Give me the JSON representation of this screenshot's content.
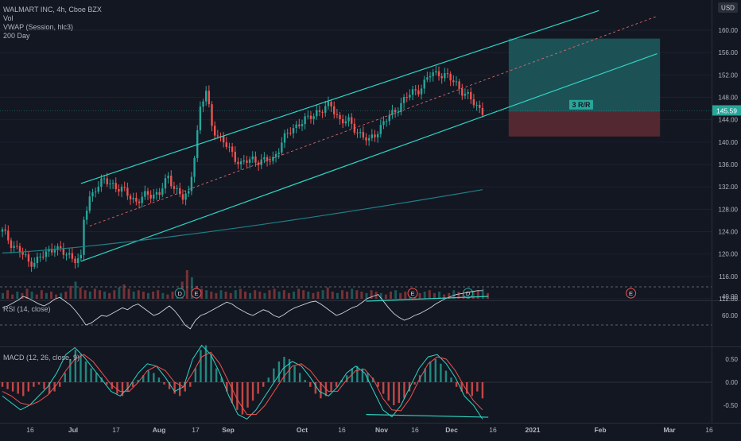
{
  "legend": {
    "main": "WALMART INC, 4h, Cboe BZX",
    "vol": "Vol",
    "vwap": "VWAP (Session, hlc3)",
    "ma": "200 Day"
  },
  "currency_badge": "USD",
  "last_price": "145.59",
  "rr_label": "3 R/R",
  "rsi_label": "RSI (14, close)",
  "macd_label": "MACD (12, 26, close, 9)",
  "event_markers": [
    "D",
    "E",
    "E",
    "D",
    "E"
  ],
  "colors": {
    "background": "#131722",
    "up": "#26a69a",
    "down": "#ef5350",
    "channel": "#2ed5c3",
    "ma": "#1e7f86",
    "profit_zone": "#1f5c5f",
    "loss_zone": "#5b2a33",
    "rsi_line": "#d1d4dc",
    "macd_line": "#2ed5c3",
    "signal_line": "#ef5350"
  },
  "chart_data": [
    {
      "type": "candlestick",
      "title": "WALMART INC, 4h, Cboe BZX",
      "y_axis_ticks": [
        112,
        116,
        120,
        124,
        128,
        132,
        136,
        140,
        144,
        148,
        152,
        156,
        160
      ],
      "y_axis_labels": [
        "112.00",
        "116.00",
        "120.00",
        "124.00",
        "128.00",
        "132.00",
        "136.00",
        "140.00",
        "144.00",
        "148.00",
        "152.00",
        "156.00",
        "160.00"
      ],
      "ylim": [
        111.5,
        164
      ],
      "x_axis_labels": [
        "16",
        "Jul",
        "17",
        "Aug",
        "17",
        "Sep",
        "Oct",
        "16",
        "Nov",
        "16",
        "Dec",
        "16",
        "2021",
        "Feb",
        "Mar",
        "16"
      ],
      "close_path": [
        [
          0,
          124.0
        ],
        [
          3,
          122.0
        ],
        [
          6,
          120.5
        ],
        [
          9,
          118.5
        ],
        [
          12,
          119.0
        ],
        [
          15,
          120.0
        ],
        [
          18,
          121.5
        ],
        [
          21,
          120.0
        ],
        [
          24,
          119.5
        ],
        [
          27,
          119.0
        ],
        [
          28,
          126.0
        ],
        [
          30,
          130.0
        ],
        [
          32,
          132.0
        ],
        [
          35,
          133.0
        ],
        [
          38,
          132.5
        ],
        [
          42,
          131.0
        ],
        [
          46,
          129.5
        ],
        [
          50,
          130.5
        ],
        [
          54,
          131.0
        ],
        [
          57,
          133.5
        ],
        [
          60,
          131.5
        ],
        [
          62,
          130.0
        ],
        [
          64,
          130.5
        ],
        [
          66,
          138.0
        ],
        [
          68,
          146.0
        ],
        [
          70,
          149.0
        ],
        [
          72,
          143.0
        ],
        [
          75,
          140.5
        ],
        [
          79,
          138.0
        ],
        [
          82,
          136.0
        ],
        [
          86,
          137.0
        ],
        [
          90,
          136.5
        ],
        [
          93,
          137.0
        ],
        [
          96,
          140.0
        ],
        [
          99,
          142.0
        ],
        [
          102,
          143.5
        ],
        [
          105,
          144.0
        ],
        [
          108,
          145.5
        ],
        [
          111,
          146.0
        ],
        [
          113,
          146.5
        ],
        [
          116,
          144.0
        ],
        [
          119,
          143.5
        ],
        [
          122,
          142.0
        ],
        [
          124,
          141.0
        ],
        [
          126,
          140.0
        ],
        [
          128,
          141.5
        ],
        [
          131,
          143.5
        ],
        [
          134,
          145.0
        ],
        [
          137,
          147.0
        ],
        [
          140,
          148.5
        ],
        [
          143,
          149.5
        ],
        [
          145,
          150.5
        ],
        [
          147,
          152.0
        ],
        [
          150,
          152.5
        ],
        [
          153,
          151.5
        ],
        [
          156,
          150.5
        ],
        [
          159,
          148.5
        ],
        [
          162,
          147.0
        ],
        [
          165,
          145.59
        ]
      ],
      "volume": [
        4,
        6,
        3,
        5,
        4,
        7,
        5,
        3,
        6,
        4,
        5,
        3,
        4,
        5,
        9,
        12,
        8,
        6,
        5,
        7,
        6,
        5,
        4,
        6,
        8,
        10,
        7,
        5,
        6,
        5,
        4,
        5,
        6,
        4,
        3,
        5,
        6,
        12,
        20,
        15,
        9,
        7,
        6,
        5,
        4,
        6,
        5,
        4,
        6,
        7,
        5,
        4,
        6,
        5,
        4,
        6,
        7,
        5,
        6,
        4,
        5,
        7,
        6,
        5,
        4,
        5,
        6,
        8,
        5,
        4,
        6,
        5,
        7,
        6,
        5,
        4,
        6,
        5,
        4,
        3,
        5,
        6,
        4,
        5,
        6,
        3,
        4,
        5,
        6,
        4,
        5,
        3,
        4,
        6,
        5,
        4,
        3,
        5,
        6,
        7,
        4
      ],
      "series": [
        {
          "name": "VWAP (Session, hlc3)"
        },
        {
          "name": "200 Day",
          "start": 120.2,
          "end": 131.5
        }
      ],
      "channel": {
        "upper": [
          [
            27,
            132.6
          ],
          [
            205,
            163.5
          ]
        ],
        "lower": [
          [
            27,
            118.7
          ],
          [
            225,
            155.8
          ]
        ],
        "mid": [
          [
            30,
            125.0
          ],
          [
            225,
            162.5
          ]
        ]
      },
      "position": {
        "label": "3 R/R",
        "entry": 145.4,
        "target": 158.5,
        "stop": 141.0,
        "x_start": 174,
        "x_end": 226
      },
      "event_markers_x": [
        61,
        65,
        141,
        160,
        216
      ]
    },
    {
      "type": "line",
      "title": "RSI (14, close)",
      "y_axis_labels": [
        "40.00",
        "60.00"
      ],
      "ylim": [
        28,
        72
      ],
      "levels": [
        70,
        30
      ],
      "values": [
        52,
        50,
        47,
        44,
        40,
        42,
        45,
        48,
        50,
        47,
        43,
        41,
        45,
        49,
        55,
        62,
        70,
        68,
        64,
        60,
        61,
        58,
        55,
        52,
        54,
        50,
        48,
        52,
        56,
        60,
        58,
        54,
        50,
        55,
        62,
        70,
        74,
        65,
        60,
        58,
        55,
        52,
        49,
        46,
        48,
        52,
        55,
        58,
        60,
        57,
        54,
        56,
        60,
        62,
        59,
        55,
        52,
        50,
        48,
        46,
        45,
        48,
        52,
        56,
        60,
        58,
        55,
        52,
        50,
        46,
        42,
        40,
        38,
        45,
        52,
        58,
        62,
        65,
        63,
        60,
        58,
        55,
        52,
        48,
        45,
        42,
        40,
        38,
        37,
        36,
        35,
        34,
        34
      ],
      "divergence": [
        [
          125,
          45.0
        ],
        [
          167,
          40.0
        ]
      ]
    },
    {
      "type": "macd",
      "title": "MACD (12, 26, close, 9)",
      "y_axis_labels": [
        "0.50",
        "0.00",
        "-0.50"
      ],
      "ylim": [
        -0.95,
        0.8
      ],
      "histogram": [
        -0.1,
        -0.15,
        -0.2,
        -0.25,
        -0.3,
        -0.2,
        -0.1,
        -0.05,
        -0.15,
        -0.25,
        -0.2,
        -0.1,
        0.2,
        0.5,
        0.7,
        0.6,
        0.45,
        0.3,
        0.2,
        0.1,
        -0.05,
        -0.15,
        -0.25,
        -0.3,
        -0.2,
        -0.1,
        0.05,
        0.15,
        0.25,
        0.2,
        0.1,
        -0.05,
        -0.15,
        -0.25,
        -0.3,
        -0.2,
        -0.1,
        0.3,
        0.7,
        0.8,
        0.6,
        0.3,
        0.1,
        -0.2,
        -0.45,
        -0.6,
        -0.7,
        -0.55,
        -0.4,
        -0.25,
        -0.1,
        0.1,
        0.3,
        0.45,
        0.55,
        0.5,
        0.35,
        0.2,
        0.05,
        -0.1,
        -0.25,
        -0.35,
        -0.3,
        -0.2,
        -0.1,
        0.05,
        0.15,
        0.3,
        0.35,
        0.3,
        0.2,
        0.1,
        -0.1,
        -0.25,
        -0.4,
        -0.5,
        -0.45,
        -0.35,
        -0.2,
        -0.05,
        0.15,
        0.3,
        0.45,
        0.5,
        0.4,
        0.25,
        0.1,
        -0.1,
        -0.2,
        -0.25,
        -0.3,
        -0.2,
        -0.35
      ],
      "macd_line": [
        -0.3,
        -0.45,
        -0.6,
        -0.5,
        -0.3,
        -0.1,
        0.2,
        0.6,
        0.75,
        0.55,
        0.3,
        0.05,
        -0.2,
        -0.3,
        -0.1,
        0.2,
        0.4,
        0.35,
        0.1,
        -0.2,
        -0.1,
        0.5,
        0.8,
        0.6,
        0.2,
        -0.3,
        -0.7,
        -0.8,
        -0.6,
        -0.3,
        0.0,
        0.3,
        0.45,
        0.35,
        0.1,
        -0.2,
        -0.3,
        -0.1,
        0.2,
        0.35,
        0.2,
        -0.2,
        -0.6,
        -0.75,
        -0.5,
        -0.1,
        0.3,
        0.55,
        0.6,
        0.4,
        0.1,
        -0.3,
        -0.5,
        -0.8
      ],
      "signal_line": [
        -0.2,
        -0.3,
        -0.45,
        -0.5,
        -0.42,
        -0.28,
        -0.05,
        0.25,
        0.5,
        0.6,
        0.45,
        0.2,
        -0.05,
        -0.2,
        -0.2,
        0.0,
        0.25,
        0.35,
        0.25,
        0.0,
        -0.1,
        0.2,
        0.55,
        0.65,
        0.4,
        0.0,
        -0.4,
        -0.7,
        -0.7,
        -0.5,
        -0.2,
        0.1,
        0.35,
        0.4,
        0.25,
        0.0,
        -0.2,
        -0.2,
        0.05,
        0.25,
        0.28,
        0.05,
        -0.35,
        -0.6,
        -0.62,
        -0.35,
        0.05,
        0.4,
        0.55,
        0.5,
        0.25,
        -0.1,
        -0.4,
        -0.6
      ],
      "divergence": [
        [
          125,
          -0.7
        ],
        [
          167,
          -0.76
        ]
      ]
    }
  ]
}
